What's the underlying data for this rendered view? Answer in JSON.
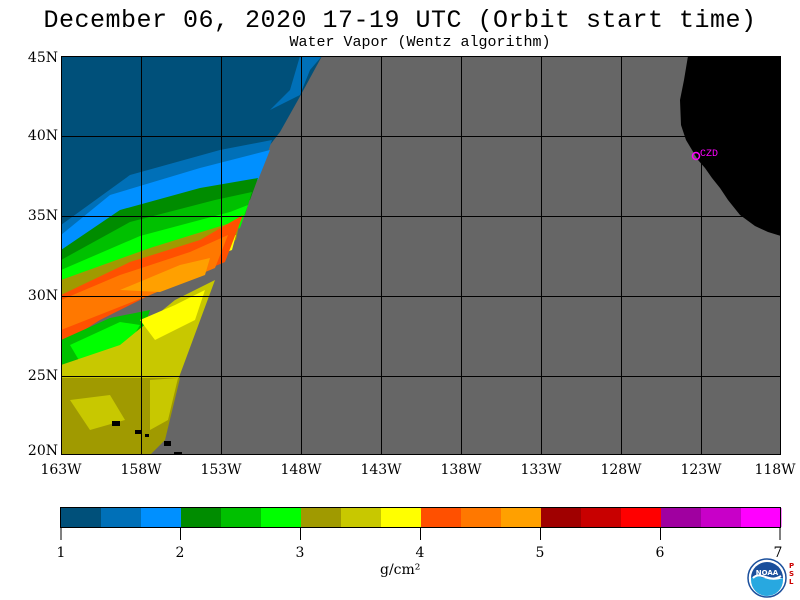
{
  "header": {
    "title": "December 06, 2020  17-19 UTC  (Orbit start time)",
    "subtitle": "Water Vapor (Wentz algorithm)"
  },
  "map": {
    "lat_labels": [
      "45N",
      "40N",
      "35N",
      "30N",
      "25N",
      "20N"
    ],
    "lon_labels": [
      "163W",
      "158W",
      "153W",
      "148W",
      "143W",
      "138W",
      "133W",
      "128W",
      "123W",
      "118W"
    ],
    "station_label": "CZD",
    "colors": {
      "no_data": "#666666",
      "land": "#000000",
      "station": "#ff00ff",
      "grid": "#000000"
    }
  },
  "colorbar": {
    "tick_labels": [
      "1",
      "2",
      "3",
      "4",
      "5",
      "6",
      "7"
    ],
    "units": "g/cm²",
    "colors": [
      "#00507a",
      "#0070b8",
      "#0090ff",
      "#008c00",
      "#00c000",
      "#00ff00",
      "#a09a00",
      "#c8c800",
      "#ffff00",
      "#ff5000",
      "#ff7800",
      "#ffa000",
      "#a00000",
      "#c80000",
      "#ff0000",
      "#a000a0",
      "#c800c8",
      "#ff00ff"
    ]
  },
  "logo": {
    "text": "NOAA",
    "side_text": "PSL"
  }
}
